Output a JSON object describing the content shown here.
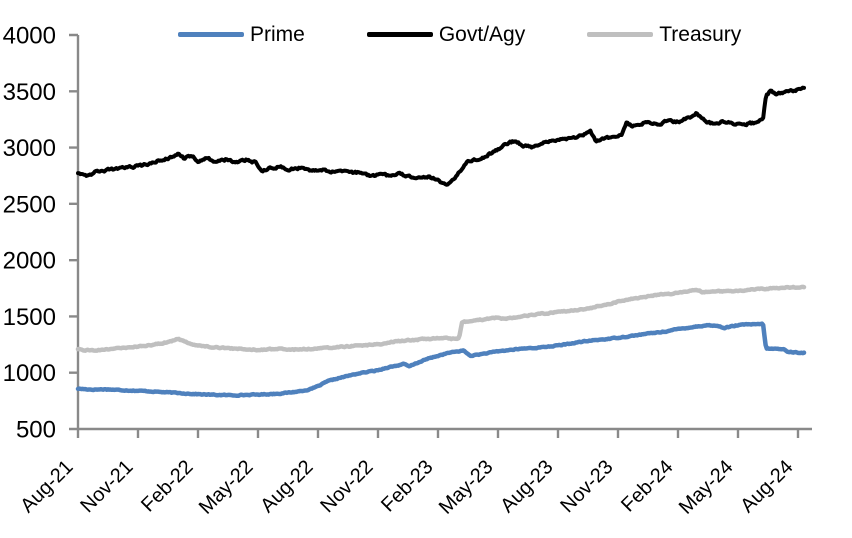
{
  "chart": {
    "background": "#FFFFFF",
    "axis_color": "#898989"
  },
  "chart_data": {
    "type": "line",
    "title": "",
    "legend_position": "top",
    "grid": false,
    "x_axis": {
      "unit": "month",
      "total_months": 36,
      "months_per_tick": 3,
      "tick_labels": [
        "Aug-21",
        "Nov-21",
        "Feb-22",
        "May-22",
        "Aug-22",
        "Nov-22",
        "Feb-23",
        "May-23",
        "Aug-23",
        "Nov-23",
        "Feb-24",
        "May-24",
        "Aug-24"
      ]
    },
    "y_axis": {
      "min": 500,
      "max": 4000,
      "step": 500,
      "tick_labels": [
        "500",
        "1000",
        "1500",
        "2000",
        "2500",
        "3000",
        "3500",
        "4000"
      ]
    },
    "series": [
      {
        "name": "Prime",
        "color": "#4F81BD",
        "line_width": 4.5,
        "noise_amplitude": 3.5,
        "points": [
          [
            0,
            858
          ],
          [
            0.7,
            850
          ],
          [
            1.4,
            853
          ],
          [
            2.1,
            846
          ],
          [
            2.8,
            841
          ],
          [
            3.5,
            836
          ],
          [
            4.2,
            828
          ],
          [
            5,
            820
          ],
          [
            5.7,
            812
          ],
          [
            6.4,
            806
          ],
          [
            7.1,
            802
          ],
          [
            7.8,
            800
          ],
          [
            8.5,
            803
          ],
          [
            9.2,
            807
          ],
          [
            10,
            814
          ],
          [
            10.6,
            824
          ],
          [
            11.1,
            836
          ],
          [
            11.6,
            852
          ],
          [
            12,
            880
          ],
          [
            12.5,
            925
          ],
          [
            13,
            950
          ],
          [
            13.5,
            972
          ],
          [
            14,
            992
          ],
          [
            14.5,
            1008
          ],
          [
            15,
            1022
          ],
          [
            15.5,
            1048
          ],
          [
            16,
            1065
          ],
          [
            16.3,
            1078
          ],
          [
            16.55,
            1055
          ],
          [
            17,
            1090
          ],
          [
            17.5,
            1125
          ],
          [
            18,
            1150
          ],
          [
            18.5,
            1175
          ],
          [
            19,
            1190
          ],
          [
            19.3,
            1196
          ],
          [
            19.6,
            1150
          ],
          [
            20,
            1160
          ],
          [
            20.5,
            1175
          ],
          [
            21,
            1190
          ],
          [
            21.5,
            1200
          ],
          [
            22,
            1210
          ],
          [
            22.5,
            1218
          ],
          [
            23,
            1222
          ],
          [
            23.5,
            1232
          ],
          [
            24,
            1242
          ],
          [
            24.5,
            1255
          ],
          [
            25,
            1270
          ],
          [
            25.5,
            1282
          ],
          [
            26,
            1292
          ],
          [
            26.5,
            1300
          ],
          [
            27,
            1312
          ],
          [
            27.5,
            1322
          ],
          [
            28,
            1335
          ],
          [
            28.5,
            1348
          ],
          [
            29,
            1358
          ],
          [
            29.5,
            1370
          ],
          [
            30,
            1388
          ],
          [
            30.5,
            1400
          ],
          [
            31,
            1412
          ],
          [
            31.5,
            1422
          ],
          [
            32,
            1415
          ],
          [
            32.3,
            1398
          ],
          [
            32.7,
            1412
          ],
          [
            33,
            1422
          ],
          [
            33.5,
            1430
          ],
          [
            34,
            1428
          ],
          [
            34.25,
            1436
          ],
          [
            34.4,
            1215
          ],
          [
            34.9,
            1212
          ],
          [
            35.3,
            1208
          ],
          [
            35.45,
            1188
          ],
          [
            35.9,
            1180
          ],
          [
            36.3,
            1176
          ]
        ]
      },
      {
        "name": "Govt/Agy",
        "color": "#000000",
        "line_width": 4,
        "noise_amplitude": 9,
        "points": [
          [
            0,
            2780
          ],
          [
            0.5,
            2755
          ],
          [
            1,
            2790
          ],
          [
            1.6,
            2805
          ],
          [
            2.2,
            2815
          ],
          [
            2.8,
            2830
          ],
          [
            3.4,
            2850
          ],
          [
            4,
            2880
          ],
          [
            4.6,
            2910
          ],
          [
            5,
            2945
          ],
          [
            5.3,
            2905
          ],
          [
            5.7,
            2925
          ],
          [
            6,
            2880
          ],
          [
            6.4,
            2905
          ],
          [
            6.9,
            2875
          ],
          [
            7.4,
            2895
          ],
          [
            7.9,
            2870
          ],
          [
            8.4,
            2890
          ],
          [
            8.9,
            2865
          ],
          [
            9.15,
            2790
          ],
          [
            9.6,
            2815
          ],
          [
            10.1,
            2830
          ],
          [
            10.6,
            2805
          ],
          [
            11.1,
            2820
          ],
          [
            11.6,
            2800
          ],
          [
            12.1,
            2805
          ],
          [
            12.6,
            2790
          ],
          [
            13.1,
            2795
          ],
          [
            13.6,
            2780
          ],
          [
            14.1,
            2775
          ],
          [
            14.6,
            2745
          ],
          [
            15.1,
            2765
          ],
          [
            15.6,
            2750
          ],
          [
            16.1,
            2765
          ],
          [
            16.6,
            2740
          ],
          [
            17.1,
            2730
          ],
          [
            17.5,
            2745
          ],
          [
            18,
            2710
          ],
          [
            18.4,
            2668
          ],
          [
            18.8,
            2730
          ],
          [
            19.1,
            2790
          ],
          [
            19.4,
            2865
          ],
          [
            19.8,
            2890
          ],
          [
            20.2,
            2905
          ],
          [
            20.6,
            2945
          ],
          [
            21,
            2985
          ],
          [
            21.4,
            3035
          ],
          [
            21.8,
            3060
          ],
          [
            22.3,
            3015
          ],
          [
            22.8,
            3005
          ],
          [
            23.2,
            3040
          ],
          [
            23.7,
            3055
          ],
          [
            24.2,
            3075
          ],
          [
            24.7,
            3085
          ],
          [
            25.2,
            3110
          ],
          [
            25.6,
            3150
          ],
          [
            25.9,
            3048
          ],
          [
            26.2,
            3070
          ],
          [
            26.7,
            3095
          ],
          [
            27.2,
            3125
          ],
          [
            27.45,
            3230
          ],
          [
            27.7,
            3185
          ],
          [
            28,
            3200
          ],
          [
            28.5,
            3230
          ],
          [
            29,
            3205
          ],
          [
            29.5,
            3240
          ],
          [
            30,
            3225
          ],
          [
            30.4,
            3255
          ],
          [
            30.9,
            3300
          ],
          [
            31.2,
            3270
          ],
          [
            31.45,
            3220
          ],
          [
            31.8,
            3215
          ],
          [
            32.3,
            3232
          ],
          [
            32.8,
            3212
          ],
          [
            33.3,
            3205
          ],
          [
            33.8,
            3222
          ],
          [
            34.25,
            3248
          ],
          [
            34.4,
            3470
          ],
          [
            34.65,
            3505
          ],
          [
            34.9,
            3480
          ],
          [
            35.3,
            3495
          ],
          [
            35.8,
            3510
          ],
          [
            36.3,
            3525
          ]
        ]
      },
      {
        "name": "Treasury",
        "color": "#BFBFBF",
        "line_width": 4.5,
        "noise_amplitude": 4.5,
        "points": [
          [
            0,
            1205
          ],
          [
            0.6,
            1198
          ],
          [
            1.2,
            1205
          ],
          [
            1.8,
            1212
          ],
          [
            2.4,
            1222
          ],
          [
            3,
            1232
          ],
          [
            3.6,
            1245
          ],
          [
            4.2,
            1262
          ],
          [
            4.7,
            1280
          ],
          [
            5,
            1300
          ],
          [
            5.4,
            1272
          ],
          [
            6,
            1242
          ],
          [
            6.6,
            1230
          ],
          [
            7.2,
            1222
          ],
          [
            7.8,
            1214
          ],
          [
            8.4,
            1208
          ],
          [
            9,
            1204
          ],
          [
            9.6,
            1208
          ],
          [
            10.2,
            1212
          ],
          [
            10.8,
            1206
          ],
          [
            11.4,
            1210
          ],
          [
            12,
            1216
          ],
          [
            12.7,
            1224
          ],
          [
            13.5,
            1235
          ],
          [
            14.5,
            1245
          ],
          [
            15.1,
            1252
          ],
          [
            15.45,
            1268
          ],
          [
            16,
            1280
          ],
          [
            16.5,
            1288
          ],
          [
            17,
            1294
          ],
          [
            17.5,
            1300
          ],
          [
            18.3,
            1310
          ],
          [
            18.8,
            1300
          ],
          [
            19.05,
            1306
          ],
          [
            19.2,
            1450
          ],
          [
            19.6,
            1460
          ],
          [
            20,
            1466
          ],
          [
            20.5,
            1480
          ],
          [
            21,
            1490
          ],
          [
            21.4,
            1478
          ],
          [
            21.8,
            1488
          ],
          [
            22.2,
            1500
          ],
          [
            23,
            1520
          ],
          [
            23.5,
            1530
          ],
          [
            24,
            1540
          ],
          [
            24.5,
            1548
          ],
          [
            25,
            1556
          ],
          [
            25.5,
            1572
          ],
          [
            26,
            1590
          ],
          [
            26.5,
            1610
          ],
          [
            27,
            1630
          ],
          [
            27.5,
            1650
          ],
          [
            28,
            1665
          ],
          [
            28.5,
            1678
          ],
          [
            29,
            1690
          ],
          [
            29.5,
            1700
          ],
          [
            30,
            1710
          ],
          [
            30.5,
            1724
          ],
          [
            30.9,
            1740
          ],
          [
            31.25,
            1714
          ],
          [
            31.7,
            1728
          ],
          [
            32.3,
            1722
          ],
          [
            33,
            1730
          ],
          [
            33.6,
            1738
          ],
          [
            34.2,
            1744
          ],
          [
            34.8,
            1750
          ],
          [
            35.4,
            1756
          ],
          [
            36.3,
            1762
          ]
        ]
      }
    ]
  }
}
